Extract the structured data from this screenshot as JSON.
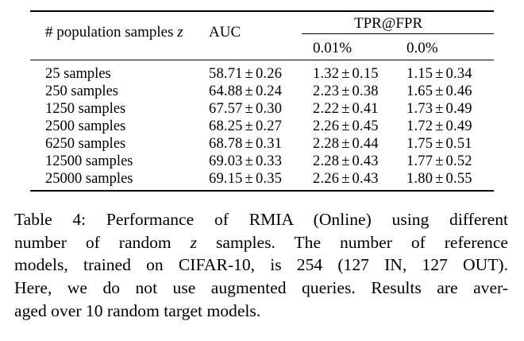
{
  "table": {
    "header": {
      "col_samples_label": "# population samples",
      "col_samples_var": "z",
      "col_auc": "AUC",
      "col_tpr_group": "TPR@FPR",
      "col_tpr_001": "0.01%",
      "col_tpr_00": "0.0%"
    },
    "rows": [
      {
        "samples": "25 samples",
        "auc": "58.71",
        "auc_sd": "0.26",
        "tpr001": "1.32",
        "tpr001_sd": "0.15",
        "tpr00": "1.15",
        "tpr00_sd": "0.34"
      },
      {
        "samples": "250 samples",
        "auc": "64.88",
        "auc_sd": "0.24",
        "tpr001": "2.23",
        "tpr001_sd": "0.38",
        "tpr00": "1.65",
        "tpr00_sd": "0.46"
      },
      {
        "samples": "1250 samples",
        "auc": "67.57",
        "auc_sd": "0.30",
        "tpr001": "2.22",
        "tpr001_sd": "0.41",
        "tpr00": "1.73",
        "tpr00_sd": "0.49"
      },
      {
        "samples": "2500 samples",
        "auc": "68.25",
        "auc_sd": "0.27",
        "tpr001": "2.26",
        "tpr001_sd": "0.45",
        "tpr00": "1.72",
        "tpr00_sd": "0.49"
      },
      {
        "samples": "6250 samples",
        "auc": "68.78",
        "auc_sd": "0.31",
        "tpr001": "2.28",
        "tpr001_sd": "0.44",
        "tpr00": "1.75",
        "tpr00_sd": "0.51"
      },
      {
        "samples": "12500 samples",
        "auc": "69.03",
        "auc_sd": "0.33",
        "tpr001": "2.28",
        "tpr001_sd": "0.43",
        "tpr00": "1.77",
        "tpr00_sd": "0.52"
      },
      {
        "samples": "25000 samples",
        "auc": "69.15",
        "auc_sd": "0.35",
        "tpr001": "2.26",
        "tpr001_sd": "0.43",
        "tpr00": "1.80",
        "tpr00_sd": "0.55"
      }
    ],
    "pm_symbol": "±"
  },
  "caption": {
    "line1": "Table 4: Performance of RMIA (Online) using different",
    "line2_before_var": "number of random ",
    "line2_var": "z",
    "line2_after_var": " samples. The number of reference",
    "line3": "models, trained on CIFAR-10, is 254 (127 IN, 127 OUT).",
    "line4": "Here, we do not use augmented queries. Results are aver-",
    "line5": "aged over 10 random target models."
  }
}
